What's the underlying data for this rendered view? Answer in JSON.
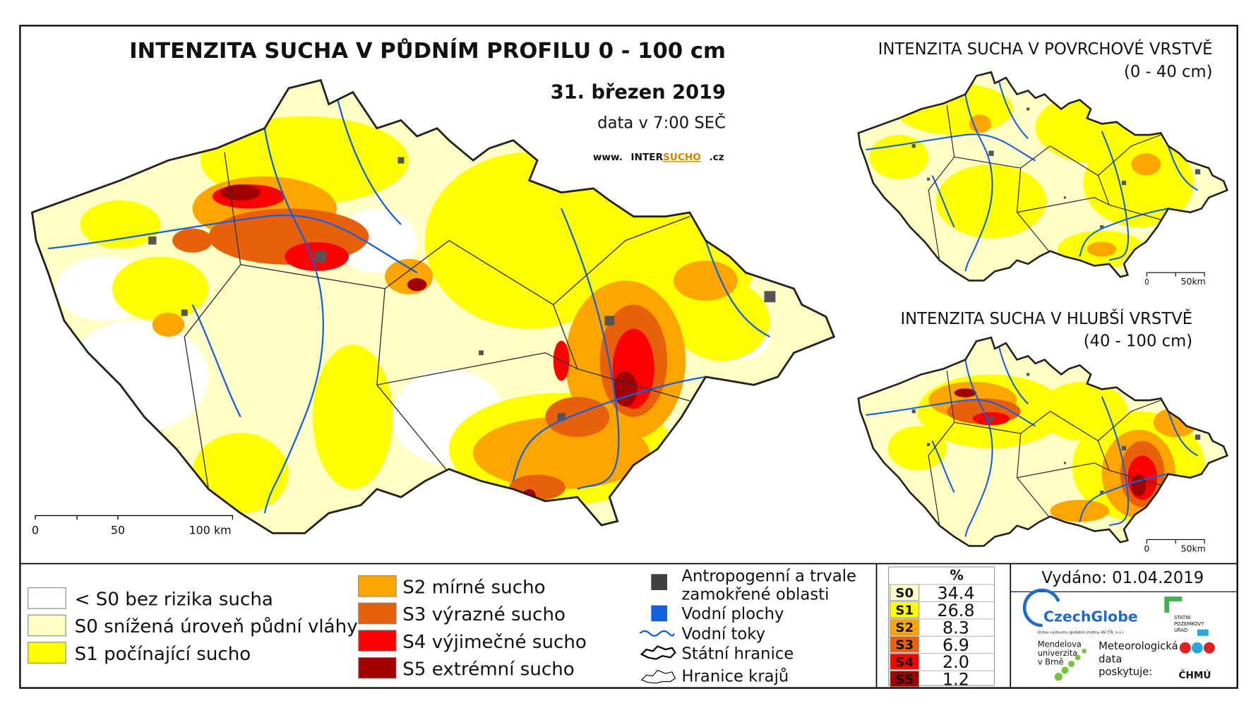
{
  "main": {
    "title": "INTENZITA SUCHA V PŮDNÍM PROFILU 0 - 100 cm",
    "date": "31. březen 2019",
    "data_time": "data v 7:00 SEČ",
    "website": [
      "www.",
      "INTER",
      "SUCHO",
      ".cz"
    ],
    "scale": [
      "0",
      "50",
      "100 km"
    ]
  },
  "inset_surface": {
    "title": "INTENZITA SUCHA V POVRCHOVÉ VRSTVĚ",
    "depth": "(0 - 40 cm)",
    "scale": [
      "0",
      "50km"
    ]
  },
  "inset_deep": {
    "title": "INTENZITA SUCHA V HLUBŠÍ VRSTVĚ",
    "depth": "(40 - 100 cm)",
    "scale": [
      "0",
      "50km"
    ]
  },
  "legend": {
    "classes": [
      "< S0 bez rizika sucha",
      "S0 snížená úroveň půdní vláhy",
      "S1 počínající sucho",
      "S2 mírné sucho",
      "S3 výrazné sucho",
      "S4 výjimečné sucho",
      "S5 extrémní sucho"
    ],
    "features": [
      [
        "Antropogenní a trvale",
        "zamokřené oblasti"
      ],
      [
        "Vodní plochy"
      ],
      [
        "Vodní toky"
      ],
      [
        "Státní hranice"
      ],
      [
        "Hranice krajů"
      ]
    ]
  },
  "stats": {
    "header": "%",
    "rows": [
      [
        "S0",
        "34.4"
      ],
      [
        "S1",
        "26.8"
      ],
      [
        "S2",
        "8.3"
      ],
      [
        "S3",
        "6.9"
      ],
      [
        "S4",
        "2.0"
      ],
      [
        "S5",
        "1.2"
      ]
    ]
  },
  "footer": {
    "issued": "Vydáno: 01.04.2019",
    "czechglobe": "CzechGlobe",
    "czechglobe_sub": "Ústav výzkumu globální změny AV ČR, v.v.i.",
    "spu": [
      "STÁTNÍ",
      "POZEMKOVÝ",
      "ÚŘAD"
    ],
    "mendelu": [
      "Mendelova",
      "univerzita",
      "v Brně"
    ],
    "meteo": [
      "Meteorologická",
      "data",
      "poskytuje:"
    ],
    "chmu": "ČHMÚ"
  }
}
